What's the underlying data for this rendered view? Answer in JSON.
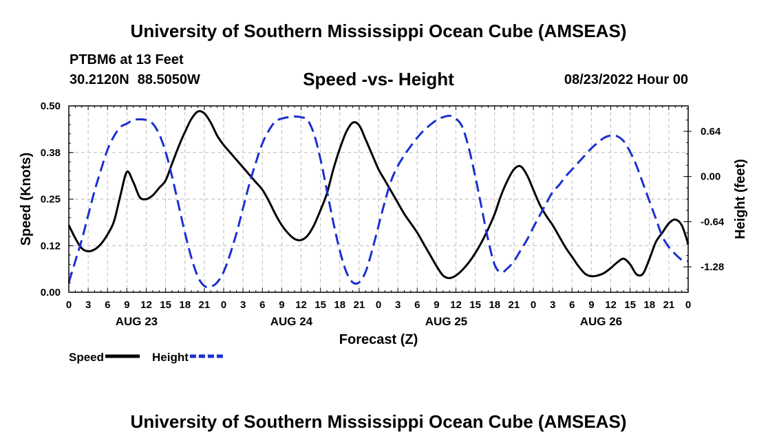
{
  "header": {
    "title": "University of Southern Mississippi Ocean Cube (AMSEAS)",
    "station": "PTBM6 at 13 Feet",
    "lat": "30.2120N",
    "lon": "88.5050W",
    "subtitle": "Speed -vs- Height",
    "timestamp": "08/23/2022 Hour 00"
  },
  "footer": {
    "title": "University of Southern Mississippi Ocean Cube (AMSEAS)"
  },
  "chart_data": {
    "type": "line",
    "xlabel": "Forecast (Z)",
    "ylabel_left": "Speed (Knots)",
    "ylabel_right": "Height (feet)",
    "x_range_hours": [
      0,
      96
    ],
    "ylim_left": [
      0,
      0.5
    ],
    "ylim_right": [
      -1.64,
      1.0
    ],
    "yticks_left": [
      "0.00",
      "0.12",
      "0.25",
      "0.38",
      "0.50"
    ],
    "yticks_left_values": [
      0,
      0.125,
      0.25,
      0.375,
      0.5
    ],
    "yticks_right": [
      "-1.28",
      "-0.64",
      "0.00",
      "0.64"
    ],
    "yticks_right_values": [
      -1.28,
      -0.64,
      0,
      0.64
    ],
    "xtick_labels": [
      "0",
      "3",
      "6",
      "9",
      "12",
      "15",
      "18",
      "21",
      "0",
      "3",
      "6",
      "9",
      "12",
      "15",
      "18",
      "21",
      "0",
      "3",
      "6",
      "9",
      "12",
      "15",
      "18",
      "21",
      "0",
      "3",
      "6",
      "9",
      "12",
      "15",
      "18",
      "21",
      "0"
    ],
    "day_labels": [
      {
        "label": "AUG 23",
        "hour": 10.5
      },
      {
        "label": "AUG 24",
        "hour": 34.5
      },
      {
        "label": "AUG 25",
        "hour": 58.5
      },
      {
        "label": "AUG 26",
        "hour": 82.5
      }
    ],
    "grid": true,
    "legend_position": "bottom-left",
    "series": [
      {
        "name": "Speed",
        "axis": "left",
        "color": "#000000",
        "dash": "solid",
        "x": [
          0,
          1,
          2,
          3,
          4,
          5,
          6,
          7,
          8,
          9,
          10,
          11,
          12,
          13,
          14,
          15,
          16,
          17,
          18,
          19,
          20,
          21,
          22,
          23,
          24,
          25,
          26,
          27,
          28,
          29,
          30,
          31,
          32,
          33,
          34,
          35,
          36,
          37,
          38,
          39,
          40,
          41,
          42,
          43,
          44,
          45,
          46,
          47,
          48,
          49,
          50,
          51,
          52,
          53,
          54,
          55,
          56,
          57,
          58,
          59,
          60,
          61,
          62,
          63,
          64,
          65,
          66,
          67,
          68,
          69,
          70,
          71,
          72,
          73,
          74,
          75,
          76,
          77,
          78,
          79,
          80,
          81,
          82,
          83,
          84,
          85,
          86,
          87,
          88,
          89,
          90,
          91,
          92,
          93,
          94,
          95,
          96
        ],
        "y": [
          0.18,
          0.145,
          0.118,
          0.11,
          0.115,
          0.13,
          0.155,
          0.19,
          0.26,
          0.323,
          0.295,
          0.255,
          0.25,
          0.26,
          0.28,
          0.3,
          0.345,
          0.39,
          0.43,
          0.465,
          0.485,
          0.48,
          0.455,
          0.42,
          0.395,
          0.375,
          0.355,
          0.335,
          0.315,
          0.295,
          0.275,
          0.245,
          0.21,
          0.18,
          0.158,
          0.143,
          0.14,
          0.152,
          0.18,
          0.22,
          0.265,
          0.33,
          0.385,
          0.43,
          0.455,
          0.448,
          0.41,
          0.37,
          0.33,
          0.3,
          0.27,
          0.24,
          0.21,
          0.185,
          0.16,
          0.13,
          0.1,
          0.07,
          0.045,
          0.038,
          0.045,
          0.06,
          0.08,
          0.105,
          0.135,
          0.17,
          0.21,
          0.26,
          0.3,
          0.33,
          0.338,
          0.315,
          0.275,
          0.235,
          0.205,
          0.18,
          0.15,
          0.12,
          0.095,
          0.07,
          0.05,
          0.043,
          0.045,
          0.052,
          0.065,
          0.08,
          0.09,
          0.075,
          0.048,
          0.05,
          0.09,
          0.135,
          0.16,
          0.185,
          0.195,
          0.18,
          0.13
        ]
      },
      {
        "name": "Height",
        "axis": "right",
        "color": "#1a2fd0",
        "dash": "dashed",
        "x": [
          0,
          1,
          2,
          3,
          4,
          5,
          6,
          7,
          8,
          9,
          10,
          11,
          12,
          13,
          14,
          15,
          16,
          17,
          18,
          19,
          20,
          21,
          22,
          23,
          24,
          25,
          26,
          27,
          28,
          29,
          30,
          31,
          32,
          33,
          34,
          35,
          36,
          37,
          38,
          39,
          40,
          41,
          42,
          43,
          44,
          45,
          46,
          47,
          48,
          49,
          50,
          51,
          52,
          53,
          54,
          55,
          56,
          57,
          58,
          59,
          60,
          61,
          62,
          63,
          64,
          65,
          66,
          67,
          68,
          69,
          70,
          71,
          72,
          73,
          74,
          75,
          76,
          77,
          78,
          79,
          80,
          81,
          82,
          83,
          84,
          85,
          86,
          87,
          88,
          89,
          90,
          91,
          92,
          93,
          94,
          95,
          96
        ],
        "y": [
          -1.5,
          -1.2,
          -0.9,
          -0.55,
          -0.2,
          0.1,
          0.38,
          0.57,
          0.7,
          0.75,
          0.8,
          0.81,
          0.8,
          0.75,
          0.6,
          0.35,
          0.0,
          -0.4,
          -0.8,
          -1.15,
          -1.42,
          -1.55,
          -1.56,
          -1.5,
          -1.35,
          -1.1,
          -0.8,
          -0.45,
          -0.1,
          0.2,
          0.47,
          0.65,
          0.78,
          0.82,
          0.84,
          0.85,
          0.84,
          0.8,
          0.6,
          0.25,
          -0.2,
          -0.65,
          -1.05,
          -1.35,
          -1.5,
          -1.5,
          -1.35,
          -1.05,
          -0.7,
          -0.35,
          -0.05,
          0.15,
          0.3,
          0.43,
          0.55,
          0.65,
          0.73,
          0.8,
          0.84,
          0.86,
          0.82,
          0.7,
          0.4,
          0.0,
          -0.45,
          -0.9,
          -1.25,
          -1.36,
          -1.3,
          -1.2,
          -1.05,
          -0.9,
          -0.72,
          -0.55,
          -0.38,
          -0.22,
          -0.12,
          0.0,
          0.1,
          0.2,
          0.3,
          0.4,
          0.48,
          0.55,
          0.58,
          0.57,
          0.5,
          0.35,
          0.15,
          -0.1,
          -0.35,
          -0.6,
          -0.85,
          -1.0,
          -1.1,
          -1.18,
          -1.2
        ]
      }
    ],
    "legend": [
      {
        "label": "Speed",
        "color": "#000000",
        "dash": "solid"
      },
      {
        "label": "Height",
        "color": "#1a2fd0",
        "dash": "dashed"
      }
    ]
  }
}
